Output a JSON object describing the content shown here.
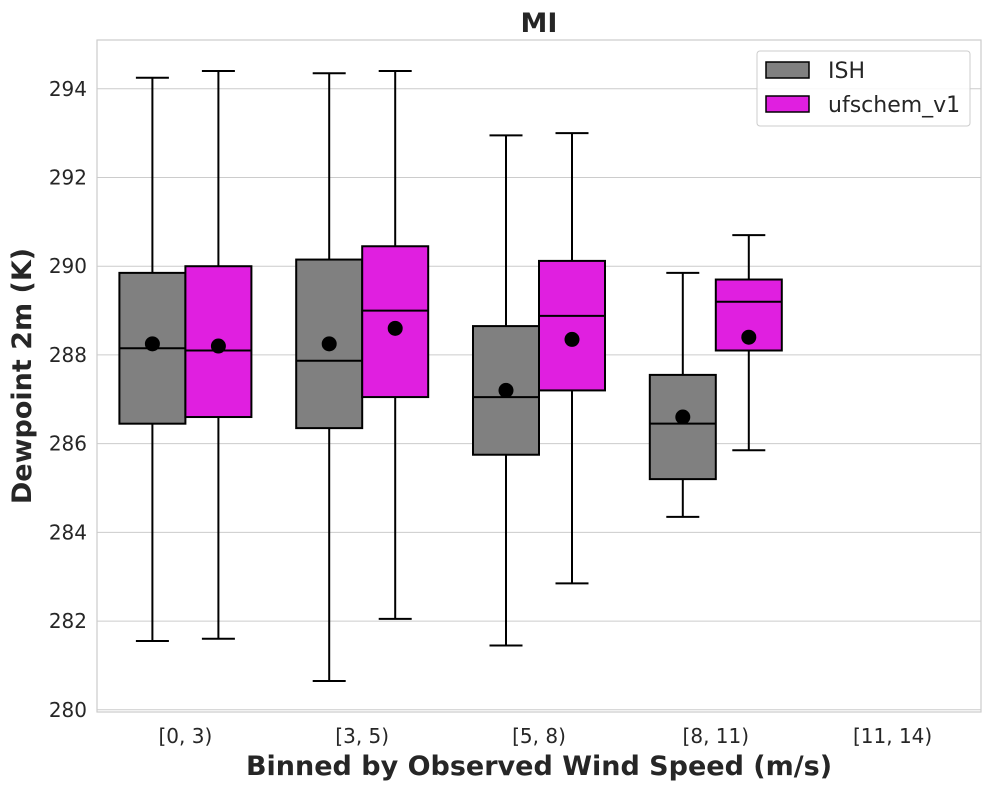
{
  "chart_data": {
    "type": "box",
    "title": "MI",
    "xlabel": "Binned by Observed Wind Speed (m/s)",
    "ylabel": "Dewpoint 2m (K)",
    "categories": [
      "[0, 3)",
      "[3, 5)",
      "[5, 8)",
      "[8, 11)",
      "[11, 14)"
    ],
    "ylim": [
      279.95,
      295.1
    ],
    "yticks": [
      280,
      282,
      284,
      286,
      288,
      290,
      292,
      294
    ],
    "grid": true,
    "legend_position": "top-right",
    "series": [
      {
        "name": "ISH",
        "color": "#808080",
        "boxes": [
          {
            "whisker_low": 281.55,
            "q1": 286.45,
            "median": 288.15,
            "q3": 289.85,
            "whisker_high": 294.25,
            "mean": 288.25
          },
          {
            "whisker_low": 280.65,
            "q1": 286.35,
            "median": 287.87,
            "q3": 290.15,
            "whisker_high": 294.35,
            "mean": 288.25
          },
          {
            "whisker_low": 281.45,
            "q1": 285.75,
            "median": 287.05,
            "q3": 288.65,
            "whisker_high": 292.95,
            "mean": 287.2
          },
          {
            "whisker_low": 284.35,
            "q1": 285.2,
            "median": 286.45,
            "q3": 287.55,
            "whisker_high": 289.85,
            "mean": 286.6
          },
          null
        ]
      },
      {
        "name": "ufschem_v1",
        "color": "#e01fe0",
        "boxes": [
          {
            "whisker_low": 281.6,
            "q1": 286.6,
            "median": 288.1,
            "q3": 290.0,
            "whisker_high": 294.4,
            "mean": 288.2
          },
          {
            "whisker_low": 282.05,
            "q1": 287.05,
            "median": 289.0,
            "q3": 290.45,
            "whisker_high": 294.4,
            "mean": 288.6
          },
          {
            "whisker_low": 282.85,
            "q1": 287.2,
            "median": 288.88,
            "q3": 290.12,
            "whisker_high": 293.0,
            "mean": 288.35
          },
          {
            "whisker_low": 285.85,
            "q1": 288.1,
            "median": 289.2,
            "q3": 289.7,
            "whisker_high": 290.7,
            "mean": 288.4
          },
          null
        ]
      }
    ]
  }
}
